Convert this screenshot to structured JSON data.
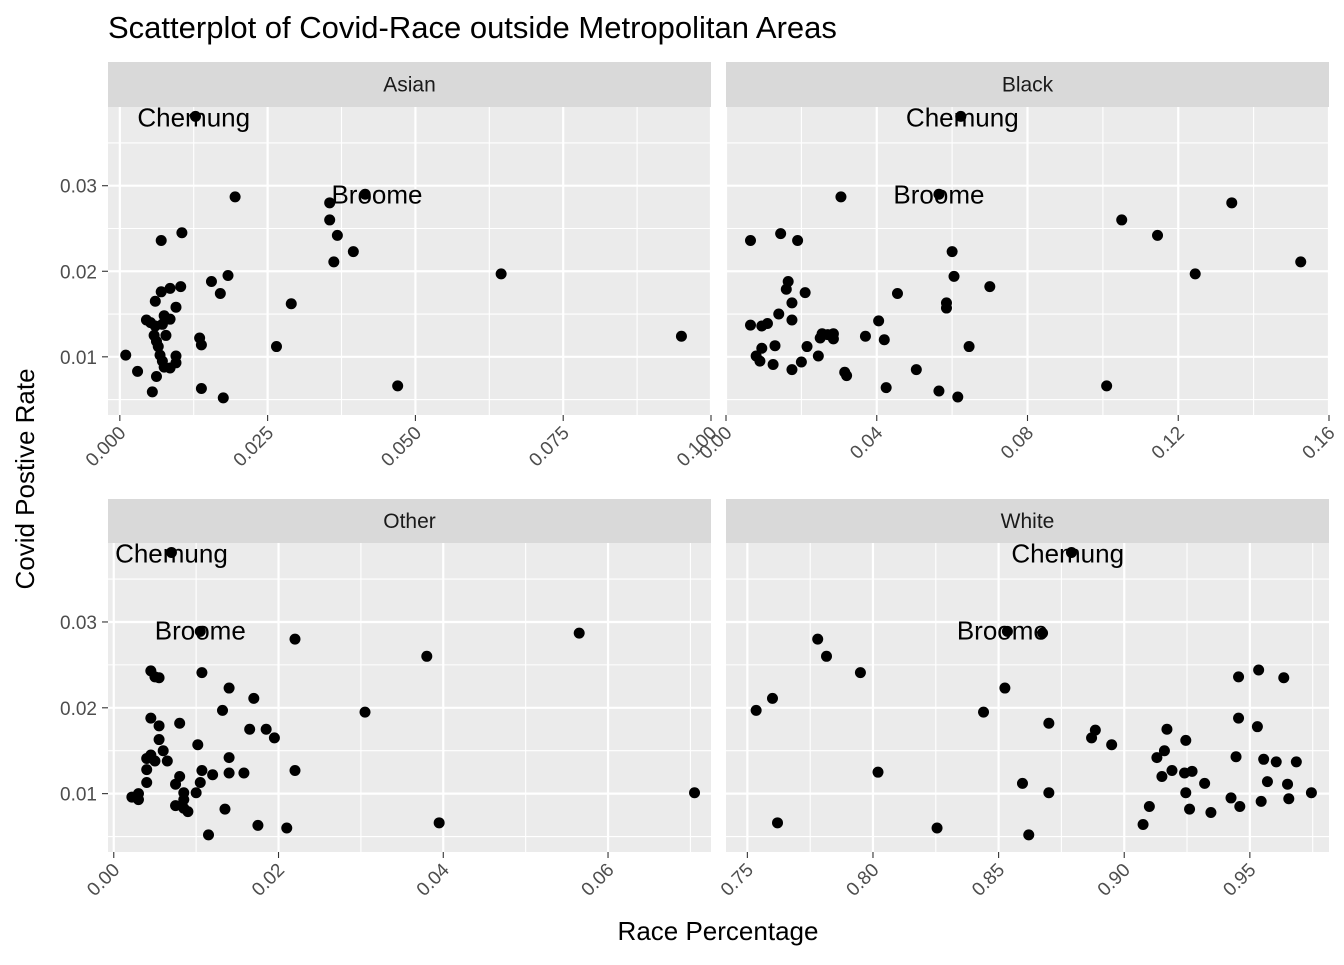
{
  "chart_data": {
    "type": "scatter",
    "title": "Scatterplot of Covid-Race outside Metropolitan Areas",
    "xlabel": "Race Percentage",
    "ylabel": "Covid Postive Rate",
    "grid": true,
    "y_ticks": [
      "0.01",
      "0.02",
      "0.03"
    ],
    "ylim": [
      0.0032,
      0.0392
    ],
    "facets": [
      {
        "name": "Asian",
        "xlim": [
          -0.002,
          0.1
        ],
        "x_ticks": [
          "0.000",
          "0.025",
          "0.050",
          "0.075",
          "0.100"
        ],
        "annotations": [
          {
            "text": "Chemung",
            "x": 0.0125,
            "y": 0.038
          },
          {
            "text": "Broome",
            "x": 0.0435,
            "y": 0.029
          }
        ],
        "points": [
          [
            0.0128,
            0.0381
          ],
          [
            0.0415,
            0.029
          ],
          [
            0.0195,
            0.0287
          ],
          [
            0.0355,
            0.028
          ],
          [
            0.0355,
            0.026
          ],
          [
            0.0105,
            0.0245
          ],
          [
            0.007,
            0.0236
          ],
          [
            0.0368,
            0.0242
          ],
          [
            0.0395,
            0.0223
          ],
          [
            0.0362,
            0.0211
          ],
          [
            0.0645,
            0.0197
          ],
          [
            0.0183,
            0.0195
          ],
          [
            0.0155,
            0.0188
          ],
          [
            0.0103,
            0.0182
          ],
          [
            0.0085,
            0.018
          ],
          [
            0.007,
            0.0176
          ],
          [
            0.006,
            0.0165
          ],
          [
            0.017,
            0.0174
          ],
          [
            0.029,
            0.0162
          ],
          [
            0.0095,
            0.0158
          ],
          [
            0.0075,
            0.0148
          ],
          [
            0.0085,
            0.0144
          ],
          [
            0.0045,
            0.0143
          ],
          [
            0.0052,
            0.014
          ],
          [
            0.006,
            0.0136
          ],
          [
            0.0072,
            0.0138
          ],
          [
            0.0078,
            0.0125
          ],
          [
            0.0058,
            0.0125
          ],
          [
            0.0062,
            0.0118
          ],
          [
            0.0065,
            0.0112
          ],
          [
            0.0135,
            0.0122
          ],
          [
            0.0138,
            0.0114
          ],
          [
            0.0265,
            0.0112
          ],
          [
            0.0068,
            0.0102
          ],
          [
            0.0095,
            0.0101
          ],
          [
            0.0072,
            0.0095
          ],
          [
            0.0095,
            0.0093
          ],
          [
            0.0075,
            0.0088
          ],
          [
            0.0085,
            0.0087
          ],
          [
            0.001,
            0.0102
          ],
          [
            0.003,
            0.0083
          ],
          [
            0.0062,
            0.0077
          ],
          [
            0.0138,
            0.0063
          ],
          [
            0.0055,
            0.0059
          ],
          [
            0.0175,
            0.0052
          ],
          [
            0.047,
            0.0066
          ],
          [
            0.095,
            0.0124
          ]
        ]
      },
      {
        "name": "Black",
        "xlim": [
          0.0,
          0.16
        ],
        "x_ticks": [
          "0.00",
          "0.04",
          "0.08",
          "0.12",
          "0.16"
        ],
        "annotations": [
          {
            "text": "Chemung",
            "x": 0.0627,
            "y": 0.038
          },
          {
            "text": "Broome",
            "x": 0.0565,
            "y": 0.029
          }
        ],
        "points": [
          [
            0.0623,
            0.0381
          ],
          [
            0.0565,
            0.029
          ],
          [
            0.0305,
            0.0287
          ],
          [
            0.1342,
            0.028
          ],
          [
            0.105,
            0.026
          ],
          [
            0.1145,
            0.0242
          ],
          [
            0.1245,
            0.0197
          ],
          [
            0.1525,
            0.0211
          ],
          [
            0.0145,
            0.0244
          ],
          [
            0.0065,
            0.0236
          ],
          [
            0.019,
            0.0236
          ],
          [
            0.06,
            0.0223
          ],
          [
            0.0605,
            0.0194
          ],
          [
            0.07,
            0.0182
          ],
          [
            0.0165,
            0.0188
          ],
          [
            0.016,
            0.0179
          ],
          [
            0.021,
            0.0175
          ],
          [
            0.0455,
            0.0174
          ],
          [
            0.0175,
            0.0163
          ],
          [
            0.014,
            0.015
          ],
          [
            0.0175,
            0.0143
          ],
          [
            0.0585,
            0.0163
          ],
          [
            0.0585,
            0.0157
          ],
          [
            0.0065,
            0.0137
          ],
          [
            0.0095,
            0.0136
          ],
          [
            0.011,
            0.0139
          ],
          [
            0.0405,
            0.0142
          ],
          [
            0.037,
            0.0124
          ],
          [
            0.042,
            0.012
          ],
          [
            0.0255,
            0.0127
          ],
          [
            0.027,
            0.0126
          ],
          [
            0.0285,
            0.0127
          ],
          [
            0.025,
            0.0122
          ],
          [
            0.0285,
            0.0121
          ],
          [
            0.013,
            0.0113
          ],
          [
            0.0095,
            0.011
          ],
          [
            0.0215,
            0.0112
          ],
          [
            0.0645,
            0.0112
          ],
          [
            0.008,
            0.0101
          ],
          [
            0.0245,
            0.0101
          ],
          [
            0.02,
            0.0094
          ],
          [
            0.009,
            0.0095
          ],
          [
            0.0125,
            0.0091
          ],
          [
            0.0175,
            0.0085
          ],
          [
            0.0315,
            0.0082
          ],
          [
            0.032,
            0.0078
          ],
          [
            0.0505,
            0.0085
          ],
          [
            0.0425,
            0.0064
          ],
          [
            0.0565,
            0.006
          ],
          [
            0.0615,
            0.0053
          ],
          [
            0.101,
            0.0066
          ]
        ]
      },
      {
        "name": "Other",
        "xlim": [
          -0.0007,
          0.0725
        ],
        "x_ticks": [
          "0.00",
          "0.02",
          "0.04",
          "0.06"
        ],
        "annotations": [
          {
            "text": "Chemung",
            "x": 0.007,
            "y": 0.038
          },
          {
            "text": "Broome",
            "x": 0.0105,
            "y": 0.029
          }
        ],
        "points": [
          [
            0.007,
            0.0381
          ],
          [
            0.0105,
            0.0289
          ],
          [
            0.022,
            0.028
          ],
          [
            0.0565,
            0.0287
          ],
          [
            0.038,
            0.026
          ],
          [
            0.0045,
            0.0243
          ],
          [
            0.005,
            0.0236
          ],
          [
            0.0055,
            0.0235
          ],
          [
            0.0107,
            0.0241
          ],
          [
            0.014,
            0.0223
          ],
          [
            0.017,
            0.0211
          ],
          [
            0.0132,
            0.0197
          ],
          [
            0.0305,
            0.0195
          ],
          [
            0.0045,
            0.0188
          ],
          [
            0.0055,
            0.0179
          ],
          [
            0.008,
            0.0182
          ],
          [
            0.0165,
            0.0175
          ],
          [
            0.0185,
            0.0175
          ],
          [
            0.0195,
            0.0165
          ],
          [
            0.0055,
            0.0163
          ],
          [
            0.0102,
            0.0157
          ],
          [
            0.006,
            0.015
          ],
          [
            0.0045,
            0.0145
          ],
          [
            0.004,
            0.0141
          ],
          [
            0.005,
            0.0138
          ],
          [
            0.0065,
            0.0138
          ],
          [
            0.014,
            0.0142
          ],
          [
            0.004,
            0.0128
          ],
          [
            0.0107,
            0.0127
          ],
          [
            0.014,
            0.0124
          ],
          [
            0.0158,
            0.0124
          ],
          [
            0.022,
            0.0127
          ],
          [
            0.012,
            0.0122
          ],
          [
            0.008,
            0.012
          ],
          [
            0.004,
            0.0113
          ],
          [
            0.0105,
            0.0113
          ],
          [
            0.0075,
            0.0111
          ],
          [
            0.0085,
            0.0101
          ],
          [
            0.003,
            0.01
          ],
          [
            0.0022,
            0.0096
          ],
          [
            0.003,
            0.0093
          ],
          [
            0.01,
            0.0101
          ],
          [
            0.0085,
            0.0093
          ],
          [
            0.0075,
            0.0086
          ],
          [
            0.0085,
            0.0083
          ],
          [
            0.009,
            0.0079
          ],
          [
            0.0135,
            0.0082
          ],
          [
            0.0705,
            0.0101
          ],
          [
            0.0395,
            0.0066
          ],
          [
            0.0175,
            0.0063
          ],
          [
            0.021,
            0.006
          ],
          [
            0.0115,
            0.0052
          ]
        ]
      },
      {
        "name": "White",
        "xlim": [
          0.7415,
          0.9815
        ],
        "x_ticks": [
          "0.75",
          "0.80",
          "0.85",
          "0.90",
          "0.95"
        ],
        "annotations": [
          {
            "text": "Chemung",
            "x": 0.8775,
            "y": 0.038
          },
          {
            "text": "Broome",
            "x": 0.8515,
            "y": 0.029
          }
        ],
        "points": [
          [
            0.879,
            0.0381
          ],
          [
            0.8535,
            0.0289
          ],
          [
            0.8675,
            0.0287
          ],
          [
            0.778,
            0.028
          ],
          [
            0.7815,
            0.026
          ],
          [
            0.795,
            0.0241
          ],
          [
            0.76,
            0.0211
          ],
          [
            0.7535,
            0.0197
          ],
          [
            0.8525,
            0.0223
          ],
          [
            0.844,
            0.0195
          ],
          [
            0.802,
            0.0125
          ],
          [
            0.762,
            0.0066
          ],
          [
            0.8255,
            0.006
          ],
          [
            0.862,
            0.0052
          ],
          [
            0.8595,
            0.0112
          ],
          [
            0.87,
            0.0101
          ],
          [
            0.87,
            0.0182
          ],
          [
            0.8885,
            0.0174
          ],
          [
            0.887,
            0.0165
          ],
          [
            0.895,
            0.0157
          ],
          [
            0.9535,
            0.0244
          ],
          [
            0.9455,
            0.0236
          ],
          [
            0.9635,
            0.0235
          ],
          [
            0.9455,
            0.0188
          ],
          [
            0.953,
            0.0178
          ],
          [
            0.917,
            0.0175
          ],
          [
            0.9245,
            0.0162
          ],
          [
            0.916,
            0.015
          ],
          [
            0.913,
            0.0142
          ],
          [
            0.9445,
            0.0143
          ],
          [
            0.9555,
            0.014
          ],
          [
            0.9605,
            0.0137
          ],
          [
            0.9685,
            0.0137
          ],
          [
            0.919,
            0.0127
          ],
          [
            0.924,
            0.0124
          ],
          [
            0.927,
            0.0126
          ],
          [
            0.915,
            0.012
          ],
          [
            0.932,
            0.0112
          ],
          [
            0.9245,
            0.0101
          ],
          [
            0.957,
            0.0114
          ],
          [
            0.965,
            0.0111
          ],
          [
            0.9745,
            0.0101
          ],
          [
            0.9425,
            0.0095
          ],
          [
            0.9545,
            0.0091
          ],
          [
            0.9655,
            0.0094
          ],
          [
            0.946,
            0.0085
          ],
          [
            0.926,
            0.0082
          ],
          [
            0.9345,
            0.0078
          ],
          [
            0.91,
            0.0085
          ],
          [
            0.9075,
            0.0064
          ]
        ]
      }
    ]
  }
}
